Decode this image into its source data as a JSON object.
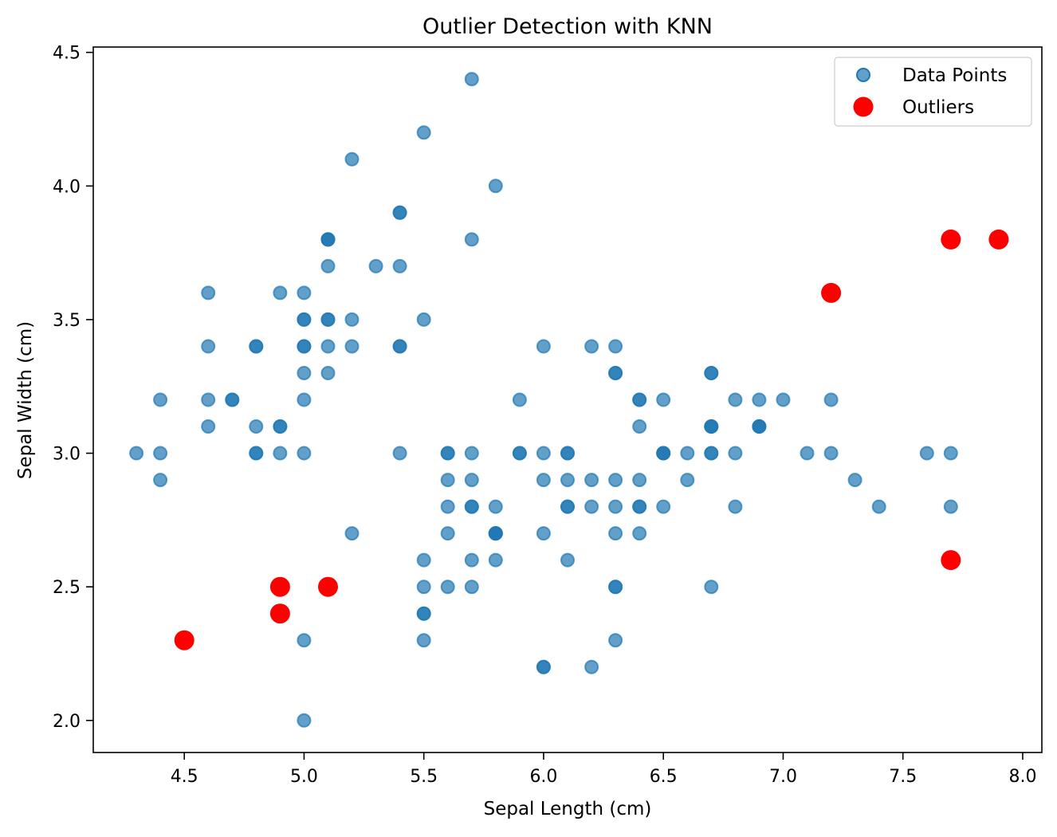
{
  "chart_data": {
    "type": "scatter",
    "title": "Outlier Detection with KNN",
    "xlabel": "Sepal Length (cm)",
    "ylabel": "Sepal Width (cm)",
    "xlim": [
      4.12,
      8.08
    ],
    "ylim": [
      1.88,
      4.52
    ],
    "xticks": [
      4.5,
      5.0,
      5.5,
      6.0,
      6.5,
      7.0,
      7.5,
      8.0
    ],
    "xtick_labels": [
      "4.5",
      "5.0",
      "5.5",
      "6.0",
      "6.5",
      "7.0",
      "7.5",
      "8.0"
    ],
    "yticks": [
      2.0,
      2.5,
      3.0,
      3.5,
      4.0,
      4.5
    ],
    "ytick_labels": [
      "2.0",
      "2.5",
      "3.0",
      "3.5",
      "4.0",
      "4.5"
    ],
    "grid": false,
    "legend_position": "top-right",
    "series": [
      {
        "name": "Data Points",
        "color": "#1f77b4",
        "alpha": 0.7,
        "marker": "small-circle",
        "points": [
          [
            5.1,
            3.5
          ],
          [
            4.9,
            3.0
          ],
          [
            4.7,
            3.2
          ],
          [
            4.6,
            3.1
          ],
          [
            5.0,
            3.6
          ],
          [
            5.4,
            3.9
          ],
          [
            4.6,
            3.4
          ],
          [
            5.0,
            3.4
          ],
          [
            4.4,
            2.9
          ],
          [
            4.9,
            3.1
          ],
          [
            5.4,
            3.7
          ],
          [
            4.8,
            3.4
          ],
          [
            4.8,
            3.0
          ],
          [
            4.3,
            3.0
          ],
          [
            5.8,
            4.0
          ],
          [
            5.7,
            4.4
          ],
          [
            5.4,
            3.9
          ],
          [
            5.1,
            3.5
          ],
          [
            5.7,
            3.8
          ],
          [
            5.1,
            3.8
          ],
          [
            5.4,
            3.4
          ],
          [
            5.1,
            3.7
          ],
          [
            4.6,
            3.6
          ],
          [
            5.1,
            3.3
          ],
          [
            4.8,
            3.4
          ],
          [
            5.0,
            3.0
          ],
          [
            5.0,
            3.4
          ],
          [
            5.2,
            3.5
          ],
          [
            5.2,
            3.4
          ],
          [
            4.7,
            3.2
          ],
          [
            4.8,
            3.1
          ],
          [
            5.4,
            3.4
          ],
          [
            5.2,
            4.1
          ],
          [
            5.5,
            4.2
          ],
          [
            4.9,
            3.1
          ],
          [
            5.0,
            3.2
          ],
          [
            5.5,
            3.5
          ],
          [
            4.9,
            3.6
          ],
          [
            4.4,
            3.0
          ],
          [
            5.1,
            3.4
          ],
          [
            5.0,
            3.5
          ],
          [
            4.4,
            3.2
          ],
          [
            5.0,
            3.5
          ],
          [
            5.1,
            3.8
          ],
          [
            4.8,
            3.0
          ],
          [
            5.1,
            3.8
          ],
          [
            4.6,
            3.2
          ],
          [
            5.3,
            3.7
          ],
          [
            5.0,
            3.3
          ],
          [
            7.0,
            3.2
          ],
          [
            6.4,
            3.2
          ],
          [
            6.9,
            3.1
          ],
          [
            5.5,
            2.3
          ],
          [
            6.5,
            2.8
          ],
          [
            5.7,
            2.8
          ],
          [
            6.3,
            3.3
          ],
          [
            6.6,
            2.9
          ],
          [
            5.2,
            2.7
          ],
          [
            5.0,
            2.0
          ],
          [
            5.9,
            3.0
          ],
          [
            6.0,
            2.2
          ],
          [
            6.1,
            2.9
          ],
          [
            5.6,
            2.9
          ],
          [
            6.7,
            3.1
          ],
          [
            5.6,
            3.0
          ],
          [
            5.8,
            2.7
          ],
          [
            6.2,
            2.2
          ],
          [
            5.6,
            2.5
          ],
          [
            5.9,
            3.2
          ],
          [
            6.1,
            2.8
          ],
          [
            6.3,
            2.5
          ],
          [
            6.1,
            2.8
          ],
          [
            6.4,
            2.9
          ],
          [
            6.6,
            3.0
          ],
          [
            6.8,
            2.8
          ],
          [
            6.7,
            3.0
          ],
          [
            6.0,
            2.9
          ],
          [
            5.7,
            2.6
          ],
          [
            5.5,
            2.4
          ],
          [
            5.5,
            2.4
          ],
          [
            5.8,
            2.7
          ],
          [
            6.0,
            2.7
          ],
          [
            5.4,
            3.0
          ],
          [
            6.0,
            3.4
          ],
          [
            6.7,
            3.1
          ],
          [
            6.3,
            2.3
          ],
          [
            5.6,
            3.0
          ],
          [
            5.5,
            2.5
          ],
          [
            5.5,
            2.6
          ],
          [
            6.1,
            3.0
          ],
          [
            5.8,
            2.6
          ],
          [
            5.0,
            2.3
          ],
          [
            5.6,
            2.7
          ],
          [
            5.7,
            3.0
          ],
          [
            5.7,
            2.9
          ],
          [
            6.2,
            2.9
          ],
          [
            5.7,
            2.8
          ],
          [
            6.3,
            3.3
          ],
          [
            5.8,
            2.7
          ],
          [
            7.1,
            3.0
          ],
          [
            6.3,
            2.9
          ],
          [
            6.5,
            3.0
          ],
          [
            7.6,
            3.0
          ],
          [
            7.3,
            2.9
          ],
          [
            6.7,
            2.5
          ],
          [
            6.5,
            3.2
          ],
          [
            6.4,
            2.7
          ],
          [
            6.8,
            3.0
          ],
          [
            5.7,
            2.5
          ],
          [
            5.8,
            2.8
          ],
          [
            6.4,
            3.2
          ],
          [
            6.5,
            3.0
          ],
          [
            6.0,
            2.2
          ],
          [
            6.9,
            3.2
          ],
          [
            5.6,
            2.8
          ],
          [
            7.7,
            2.8
          ],
          [
            6.3,
            2.7
          ],
          [
            6.7,
            3.3
          ],
          [
            7.2,
            3.2
          ],
          [
            6.2,
            2.8
          ],
          [
            6.1,
            3.0
          ],
          [
            6.4,
            2.8
          ],
          [
            7.2,
            3.0
          ],
          [
            7.4,
            2.8
          ],
          [
            6.4,
            2.8
          ],
          [
            6.3,
            2.8
          ],
          [
            6.1,
            2.6
          ],
          [
            7.7,
            3.0
          ],
          [
            6.3,
            3.4
          ],
          [
            6.4,
            3.1
          ],
          [
            6.0,
            3.0
          ],
          [
            6.9,
            3.1
          ],
          [
            6.7,
            3.1
          ],
          [
            6.9,
            3.1
          ],
          [
            5.8,
            2.7
          ],
          [
            6.8,
            3.2
          ],
          [
            6.7,
            3.3
          ],
          [
            6.7,
            3.0
          ],
          [
            6.3,
            2.5
          ],
          [
            6.5,
            3.0
          ],
          [
            6.2,
            3.4
          ],
          [
            5.9,
            3.0
          ]
        ]
      },
      {
        "name": "Outliers",
        "color": "#ff0000",
        "alpha": 1.0,
        "marker": "large-circle",
        "points": [
          [
            4.5,
            2.3
          ],
          [
            4.9,
            2.4
          ],
          [
            4.9,
            2.5
          ],
          [
            5.1,
            2.5
          ],
          [
            7.2,
            3.6
          ],
          [
            7.7,
            3.8
          ],
          [
            7.9,
            3.8
          ],
          [
            7.7,
            2.6
          ]
        ]
      }
    ]
  }
}
